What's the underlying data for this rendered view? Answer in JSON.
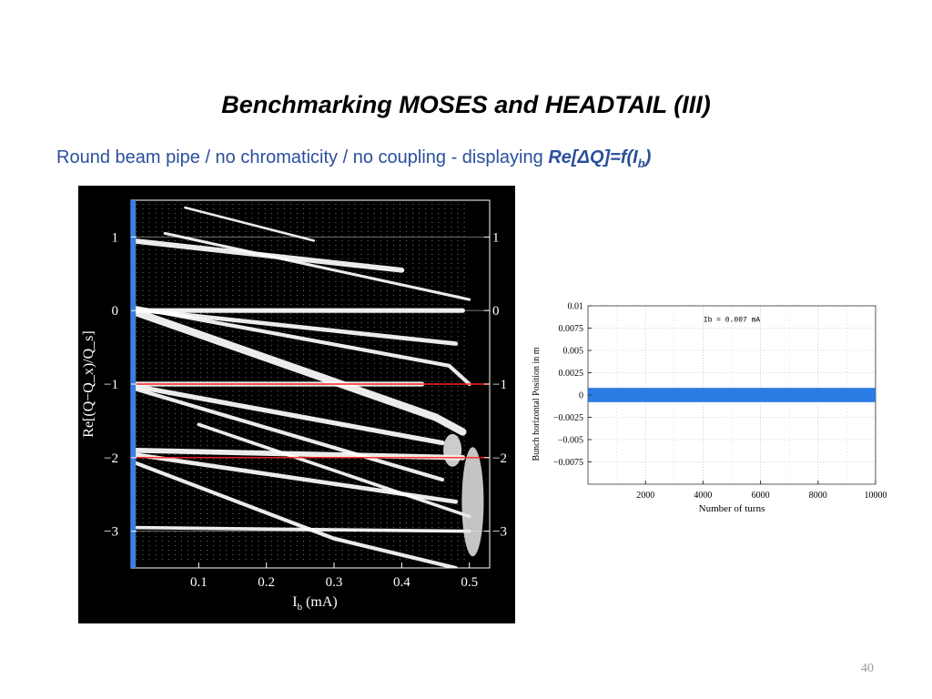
{
  "slide": {
    "title": "Benchmarking MOSES and HEADTAIL (III)",
    "subtitle_text": "Round beam pipe / no chromaticity / no coupling - displaying ",
    "formula_main": "Re[ΔQ]=f(I",
    "formula_sub": "b",
    "formula_end": ")",
    "page_number": "40"
  },
  "colors": {
    "subtitle": "#2a4f9c",
    "left_background": "#000000",
    "mode_lines": "#ffffff",
    "marker_line": "#3a7fe0",
    "reference_lines": "#ff2020",
    "turn_band": "#2a7be4"
  },
  "chart_data": [
    {
      "type": "scatter",
      "title": "",
      "xlabel": "I_b (mA)",
      "xlabel_main": "I",
      "xlabel_sub": "b",
      "xlabel_unit": "(mA)",
      "ylabel": "Re[(Q−Q_x)/Q_s]",
      "xlim": [
        0,
        0.53
      ],
      "ylim": [
        -3.5,
        1.5
      ],
      "x_ticks": [
        {
          "v": 0.1,
          "label": "0.1"
        },
        {
          "v": 0.2,
          "label": "0.2"
        },
        {
          "v": 0.3,
          "label": "0.3"
        },
        {
          "v": 0.4,
          "label": "0.4"
        },
        {
          "v": 0.5,
          "label": "0.5"
        }
      ],
      "y_ticks": [
        {
          "v": 1,
          "label": "1"
        },
        {
          "v": 0,
          "label": "0"
        },
        {
          "v": -1,
          "label": "−1"
        },
        {
          "v": -2,
          "label": "−2"
        },
        {
          "v": -3,
          "label": "−3"
        }
      ],
      "marker_line_x": 0.003,
      "reference_lines_y": [
        -1,
        -2
      ],
      "series": [
        {
          "points": [
            [
              0.0,
              0.0
            ],
            [
              0.45,
              -1.45
            ],
            [
              0.49,
              -1.65
            ]
          ],
          "thickness": 3.2
        },
        {
          "points": [
            [
              0.0,
              0.0
            ],
            [
              0.49,
              0.0
            ]
          ],
          "thickness": 2.0
        },
        {
          "points": [
            [
              0.0,
              0.02
            ],
            [
              0.48,
              -0.45
            ]
          ],
          "thickness": 1.8
        },
        {
          "points": [
            [
              0.0,
              0.05
            ],
            [
              0.47,
              -0.75
            ],
            [
              0.5,
              -1.0
            ]
          ],
          "thickness": 1.6
        },
        {
          "points": [
            [
              0.0,
              0.95
            ],
            [
              0.4,
              0.55
            ]
          ],
          "thickness": 2.2
        },
        {
          "points": [
            [
              0.05,
              1.05
            ],
            [
              0.5,
              0.15
            ]
          ],
          "thickness": 1.2
        },
        {
          "points": [
            [
              0.08,
              1.4
            ],
            [
              0.27,
              0.95
            ]
          ],
          "thickness": 1.0
        },
        {
          "points": [
            [
              0.0,
              -1.0
            ],
            [
              0.43,
              -1.0
            ]
          ],
          "thickness": 2.0
        },
        {
          "points": [
            [
              0.0,
              -1.02
            ],
            [
              0.46,
              -1.8
            ]
          ],
          "thickness": 2.0
        },
        {
          "points": [
            [
              0.0,
              -1.05
            ],
            [
              0.46,
              -2.3
            ]
          ],
          "thickness": 1.6
        },
        {
          "points": [
            [
              0.0,
              -1.9
            ],
            [
              0.49,
              -2.0
            ]
          ],
          "thickness": 2.2
        },
        {
          "points": [
            [
              0.0,
              -1.95
            ],
            [
              0.48,
              -2.6
            ]
          ],
          "thickness": 1.8
        },
        {
          "points": [
            [
              0.0,
              -2.05
            ],
            [
              0.3,
              -3.1
            ],
            [
              0.48,
              -3.5
            ]
          ],
          "thickness": 1.6
        },
        {
          "points": [
            [
              0.0,
              -2.95
            ],
            [
              0.5,
              -3.0
            ]
          ],
          "thickness": 1.4
        },
        {
          "points": [
            [
              0.1,
              -1.55
            ],
            [
              0.5,
              -2.8
            ]
          ],
          "thickness": 1.4
        }
      ]
    },
    {
      "type": "line",
      "title": "",
      "annotation": "Ib = 0.007 mA",
      "xlabel": "Number of turns",
      "ylabel": "Bunch horizontal Position in m",
      "xlim": [
        0,
        10000
      ],
      "ylim": [
        -0.01,
        0.01
      ],
      "x_ticks": [
        {
          "v": 2000,
          "label": "2000"
        },
        {
          "v": 4000,
          "label": "4000"
        },
        {
          "v": 6000,
          "label": "6000"
        },
        {
          "v": 8000,
          "label": "8000"
        },
        {
          "v": 10000,
          "label": "10000"
        }
      ],
      "y_ticks": [
        {
          "v": 0.01,
          "label": "0.01"
        },
        {
          "v": 0.0075,
          "label": "0.0075"
        },
        {
          "v": 0.005,
          "label": "0.005"
        },
        {
          "v": 0.0025,
          "label": "0.0025"
        },
        {
          "v": 0,
          "label": "0"
        },
        {
          "v": -0.0025,
          "label": "−0.0025"
        },
        {
          "v": -0.005,
          "label": "−0.005"
        },
        {
          "v": -0.0075,
          "label": "−0.0075"
        }
      ],
      "band": {
        "x": [
          0,
          10000
        ],
        "y_min": -0.0008,
        "y_max": 0.0008
      }
    }
  ]
}
